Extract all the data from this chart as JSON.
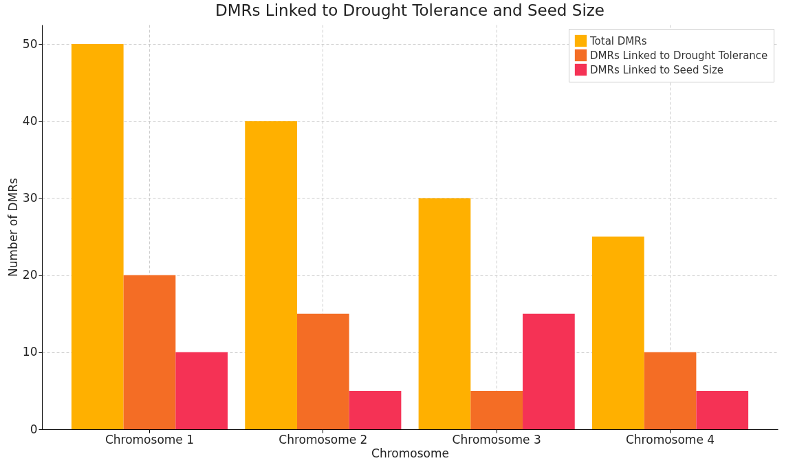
{
  "chart_data": {
    "type": "bar",
    "title": "DMRs Linked to Drought Tolerance and Seed Size",
    "xlabel": "Chromosome",
    "ylabel": "Number of DMRs",
    "categories": [
      "Chromosome 1",
      "Chromosome 2",
      "Chromosome 3",
      "Chromosome 4"
    ],
    "series": [
      {
        "name": "Total DMRs",
        "color": "#ffb000",
        "values": [
          50,
          40,
          30,
          25
        ]
      },
      {
        "name": "DMRs Linked to Drought Tolerance",
        "color": "#f46d25",
        "values": [
          20,
          15,
          5,
          10
        ]
      },
      {
        "name": "DMRs Linked to Seed Size",
        "color": "#f53255",
        "values": [
          10,
          5,
          15,
          5
        ]
      }
    ],
    "ylim": [
      0,
      52.5
    ],
    "yticks": [
      0,
      10,
      20,
      30,
      40,
      50
    ],
    "grid": true,
    "legend": "top right"
  }
}
